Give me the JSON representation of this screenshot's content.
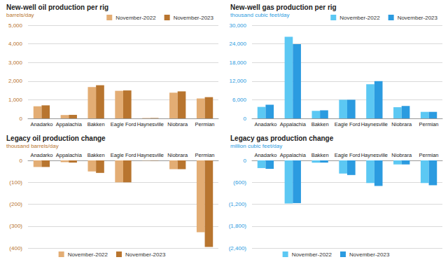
{
  "chart_data": [
    {
      "type": "bar",
      "title": "New-well oil production per rig",
      "subtitle": "barrels/day",
      "categories": [
        "Anadarko",
        "Appalachia",
        "Bakken",
        "Eagle Ford",
        "Haynesville",
        "Niobrara",
        "Permian"
      ],
      "series": [
        {
          "name": "November-2022",
          "color": "#e3ad74",
          "values": [
            650,
            180,
            1680,
            1480,
            20,
            1380,
            1070
          ]
        },
        {
          "name": "November-2023",
          "color": "#b8752f",
          "values": [
            700,
            190,
            1780,
            1500,
            20,
            1450,
            1140
          ]
        }
      ],
      "ylim": [
        0,
        5000
      ],
      "yticks": [
        0,
        {
          "value": 1000,
          "label": "1,000"
        },
        {
          "value": 2000,
          "label": "2,000"
        },
        {
          "value": 3000,
          "label": "3,000"
        },
        {
          "value": 4000,
          "label": "4,000"
        },
        {
          "value": 5000,
          "label": "5,000"
        }
      ],
      "grid": true,
      "legend": "top"
    },
    {
      "type": "bar",
      "title": "New-well gas production per rig",
      "subtitle": "thousand cubic feet/day",
      "categories": [
        "Anadarko",
        "Appalachia",
        "Bakken",
        "Eagle Ford",
        "Haynesville",
        "Niobrara",
        "Permian"
      ],
      "series": [
        {
          "name": "November-2022",
          "color": "#5cc8f3",
          "values": [
            3700,
            26300,
            2400,
            6000,
            11000,
            3600,
            2100
          ]
        },
        {
          "name": "November-2023",
          "color": "#2b9be0",
          "values": [
            4400,
            23900,
            2600,
            6000,
            12000,
            4000,
            2100
          ]
        }
      ],
      "ylim": [
        0,
        30000
      ],
      "yticks": [
        0,
        {
          "value": 6000,
          "label": "6,000"
        },
        {
          "value": 12000,
          "label": "12,000"
        },
        {
          "value": 18000,
          "label": "18,000"
        },
        {
          "value": 24000,
          "label": "24,000"
        },
        {
          "value": 30000,
          "label": "30,000"
        }
      ],
      "grid": true,
      "legend": "top"
    },
    {
      "type": "bar",
      "title": "Legacy oil production change",
      "subtitle": "thousand barrels/day",
      "categories": [
        "Anadarko",
        "Appalachia",
        "Bakken",
        "Eagle Ford",
        "Haynesville",
        "Niobrara",
        "Permian"
      ],
      "series": [
        {
          "name": "November-2022",
          "color": "#e3ad74",
          "values": [
            -30,
            -8,
            -50,
            -100,
            -1,
            -40,
            -328
          ]
        },
        {
          "name": "November-2023",
          "color": "#b8752f",
          "values": [
            -30,
            -10,
            -57,
            -100,
            -1,
            -40,
            -395
          ]
        }
      ],
      "ylim": [
        -400,
        0
      ],
      "yticks": [
        {
          "value": -400,
          "label": "(400)"
        },
        {
          "value": -300,
          "label": "(300)"
        },
        {
          "value": -200,
          "label": "(200)"
        },
        {
          "value": -100,
          "label": "(100)"
        },
        0
      ],
      "grid": true,
      "legend": "bottom"
    },
    {
      "type": "bar",
      "title": "Legacy gas production change",
      "subtitle": "million cubic feet/day",
      "categories": [
        "Anadarko",
        "Appalachia",
        "Bakken",
        "Eagle Ford",
        "Haynesville",
        "Niobrara",
        "Permian"
      ],
      "series": [
        {
          "name": "November-2022",
          "color": "#5cc8f3",
          "values": [
            -210,
            -1180,
            -60,
            -360,
            -620,
            -110,
            -620
          ]
        },
        {
          "name": "November-2023",
          "color": "#2b9be0",
          "values": [
            -230,
            -1170,
            -60,
            -400,
            -700,
            -110,
            -680
          ]
        }
      ],
      "ylim": [
        -2400,
        0
      ],
      "yticks": [
        {
          "value": -2400,
          "label": "(2,400)"
        },
        {
          "value": -1800,
          "label": "(1,800)"
        },
        {
          "value": -1200,
          "label": "(1,200)"
        },
        {
          "value": -600,
          "label": "(600)"
        },
        0
      ],
      "grid": true,
      "legend": "bottom"
    }
  ]
}
